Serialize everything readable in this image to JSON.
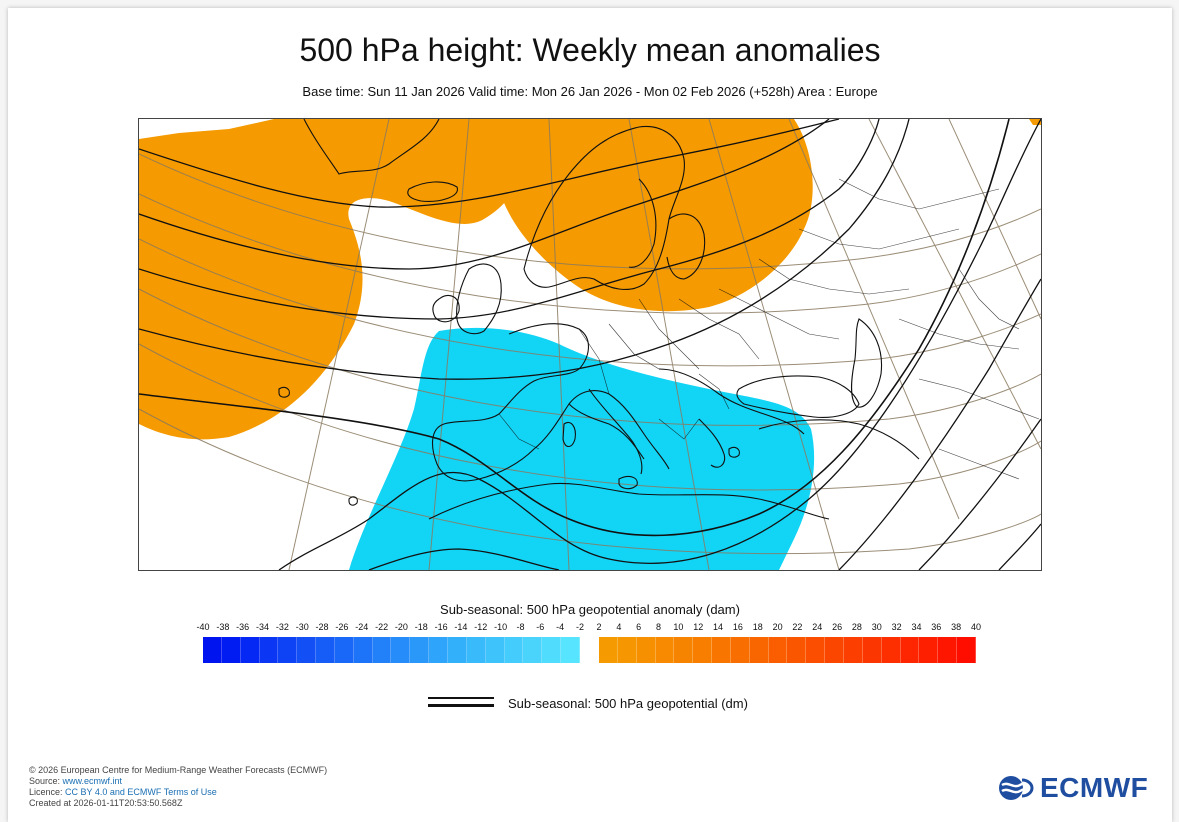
{
  "header": {
    "title": "500 hPa height: Weekly mean anomalies",
    "subtitle": "Base time: Sun 11 Jan 2026 Valid time: Mon 26 Jan 2026 - Mon 02 Feb 2026 (+528h) Area : Europe"
  },
  "map": {
    "area": "Europe",
    "features": [
      "coastlines",
      "country-borders",
      "graticule",
      "geopotential-contours",
      "anomaly-shading"
    ],
    "colors": {
      "positive_anomaly": "#f59a00",
      "negative_anomaly": "#12d4f5",
      "contour": "#111111",
      "graticule": "#8a7a60"
    }
  },
  "colorbar": {
    "title": "Sub-seasonal: 500 hPa geopotential anomaly (dam)",
    "negative_labels": [
      "-40",
      "-38",
      "-36",
      "-34",
      "-32",
      "-30",
      "-28",
      "-26",
      "-24",
      "-22",
      "-20",
      "-18",
      "-16",
      "-14",
      "-12",
      "-10",
      "-8",
      "-6",
      "-4",
      "-2"
    ],
    "positive_labels": [
      "2",
      "4",
      "6",
      "8",
      "10",
      "12",
      "14",
      "16",
      "18",
      "20",
      "22",
      "24",
      "26",
      "28",
      "30",
      "32",
      "34",
      "36",
      "38",
      "40"
    ],
    "negative_colors": [
      "#0014f0",
      "#001cf2",
      "#0628f4",
      "#0a36f4",
      "#0e42f5",
      "#1250f6",
      "#165cf7",
      "#1a68f7",
      "#1e74f8",
      "#2280f8",
      "#268cf9",
      "#2a98f9",
      "#2ea4fa",
      "#32b0fa",
      "#38bafb",
      "#3ec4fb",
      "#44ccfc",
      "#4ad4fc",
      "#50dcfd",
      "#56e4fe"
    ],
    "positive_colors": [
      "#f59a00",
      "#f69600",
      "#f69000",
      "#f78a00",
      "#f78400",
      "#f87e00",
      "#f87600",
      "#f96e00",
      "#f96600",
      "#fa5e00",
      "#fa5600",
      "#fb4e00",
      "#fb4600",
      "#fc3e00",
      "#fc3600",
      "#fd2e00",
      "#fd2600",
      "#fe1e00",
      "#fe1600",
      "#ff0e00"
    ]
  },
  "legend": {
    "contour_label": "Sub-seasonal: 500 hPa geopotential (dm)"
  },
  "footer": {
    "copyright": "© 2026 European Centre for Medium-Range Weather Forecasts (ECMWF)",
    "source_prefix": "Source: ",
    "source_link": "www.ecmwf.int",
    "licence_prefix": "Licence: ",
    "licence_link": "CC BY 4.0 and ECMWF Terms of Use",
    "created": "Created at 2026-01-11T20:53:50.568Z"
  },
  "logo": {
    "text": "ECMWF",
    "color": "#1f4ea0"
  }
}
